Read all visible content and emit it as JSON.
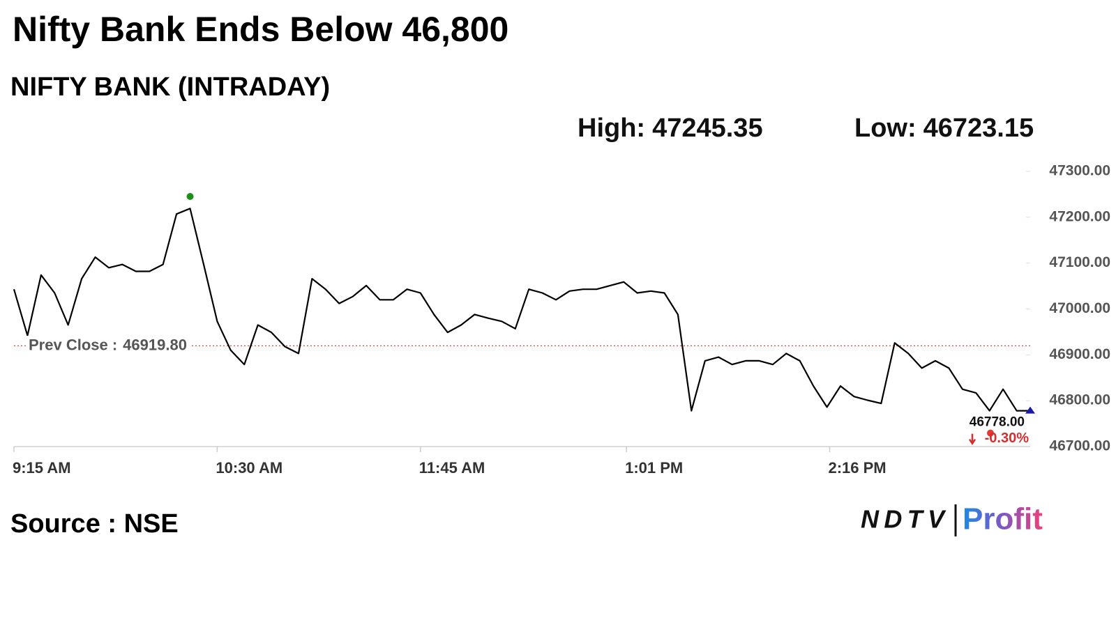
{
  "chart_data": {
    "type": "line",
    "title": "Nifty Bank Ends Below 46,800",
    "subtitle": "NIFTY BANK (INTRADAY)",
    "high_label": "High:",
    "high": 47245.35,
    "low_label": "Low:",
    "low": 46723.15,
    "prev_close_label": "Prev Close :",
    "prev_close": {
      "value": 46919.8,
      "label": "46919.80"
    },
    "last_value": {
      "value": 46778,
      "label": "46778.00"
    },
    "change": {
      "value": -0.3,
      "label": "-0.30%"
    },
    "color": "#000000",
    "x": [
      "9:15 AM",
      "9:20 AM",
      "9:25 AM",
      "9:30 AM",
      "9:35 AM",
      "9:40 AM",
      "9:45 AM",
      "9:50 AM",
      "9:55 AM",
      "10:00 AM",
      "10:05 AM",
      "10:10 AM",
      "10:15 AM",
      "10:20 AM",
      "10:25 AM",
      "10:30 AM",
      "10:35 AM",
      "10:40 AM",
      "10:45 AM",
      "10:50 AM",
      "10:55 AM",
      "11:00 AM",
      "11:05 AM",
      "11:10 AM",
      "11:15 AM",
      "11:20 AM",
      "11:25 AM",
      "11:30 AM",
      "11:35 AM",
      "11:40 AM",
      "11:45 AM",
      "11:50 AM",
      "11:55 AM",
      "12:00 PM",
      "12:05 PM",
      "12:10 PM",
      "12:15 PM",
      "12:20 PM",
      "12:25 PM",
      "12:30 PM",
      "12:35 PM",
      "12:40 PM",
      "12:45 PM",
      "12:50 PM",
      "12:55 PM",
      "1:00 PM",
      "1:05 PM",
      "1:10 PM",
      "1:15 PM",
      "1:20 PM",
      "1:25 PM",
      "1:30 PM",
      "1:35 PM",
      "1:40 PM",
      "1:45 PM",
      "1:50 PM",
      "1:55 PM",
      "2:00 PM",
      "2:05 PM",
      "2:10 PM",
      "2:15 PM",
      "2:20 PM",
      "2:25 PM",
      "2:30 PM",
      "2:35 PM",
      "2:40 PM",
      "2:45 PM",
      "2:50 PM",
      "2:55 PM",
      "3:00 PM",
      "3:05 PM",
      "3:10 PM",
      "3:15 PM",
      "3:20 PM",
      "3:25 PM",
      "3:30 PM"
    ],
    "values": [
      47043,
      46942,
      47074,
      47035,
      46965,
      47066,
      47113,
      47090,
      47097,
      47082,
      47082,
      47097,
      47207,
      47219,
      47097,
      46973,
      46910,
      46879,
      46965,
      46949,
      46918,
      46903,
      47066,
      47043,
      47012,
      47027,
      47051,
      47020,
      47020,
      47043,
      47035,
      46988,
      46949,
      46965,
      46988,
      46980,
      46973,
      46957,
      47043,
      47035,
      47020,
      47039,
      47043,
      47043,
      47051,
      47059,
      47035,
      47039,
      47035,
      46988,
      46778,
      46887,
      46895,
      46879,
      46887,
      46887,
      46879,
      46903,
      46887,
      46832,
      46786,
      46832,
      46809,
      46801,
      46794,
      46926,
      46903,
      46871,
      46887,
      46871,
      46825,
      46817,
      46778,
      46825,
      46778,
      46778
    ],
    "high_x": "10:20 AM",
    "xlim": [
      "9:15 AM",
      "3:30 PM"
    ],
    "xticks": [
      "9:15 AM",
      "10:30 AM",
      "11:45 AM",
      "1:01 PM",
      "2:16 PM"
    ],
    "ylim": [
      46700,
      47300
    ],
    "yticks": [
      {
        "value": 46700,
        "label": "46700.00"
      },
      {
        "value": 46800,
        "label": "46800.00"
      },
      {
        "value": 46900,
        "label": "46900.00"
      },
      {
        "value": 47000,
        "label": "47000.00"
      },
      {
        "value": 47100,
        "label": "47100.00"
      },
      {
        "value": 47200,
        "label": "47200.00"
      },
      {
        "value": 47300,
        "label": "47300.00"
      }
    ],
    "source": "Source : NSE"
  },
  "logo": {
    "left": "NDTV",
    "right": "Profit"
  }
}
